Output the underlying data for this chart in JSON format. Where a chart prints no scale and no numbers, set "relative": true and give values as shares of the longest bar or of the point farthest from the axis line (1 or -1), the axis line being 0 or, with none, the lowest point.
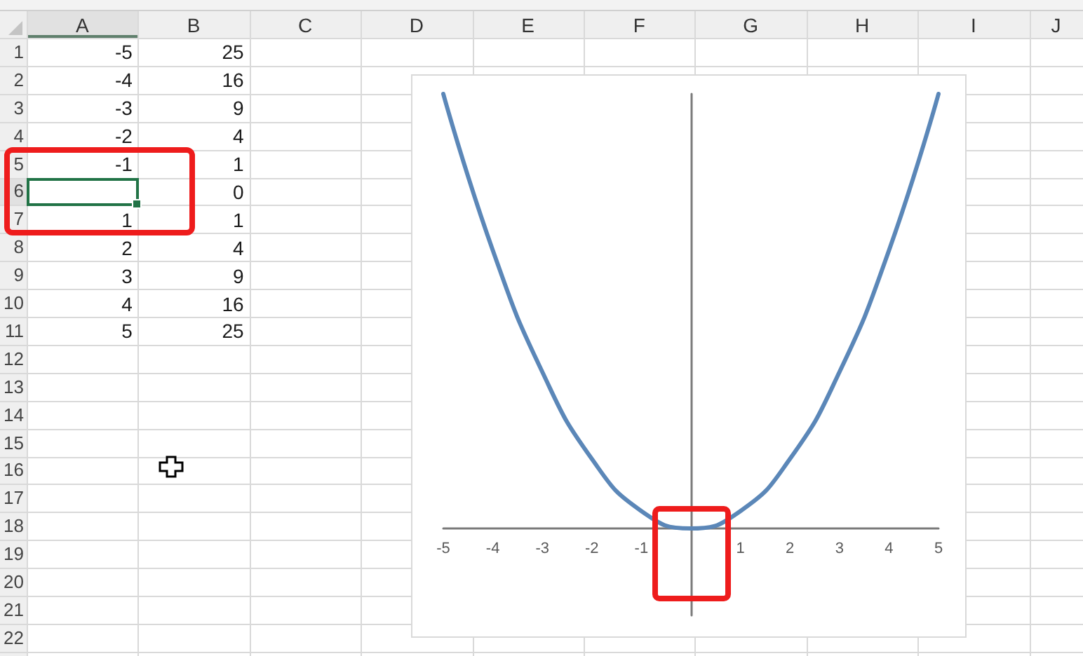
{
  "chart_data": [
    {
      "type": "heatmap",
      "categories": [
        "A",
        "B",
        "C",
        "D",
        "E",
        "F",
        "G",
        "H",
        "I",
        "J"
      ],
      "y_categories": [
        "1",
        "2",
        "3",
        "4",
        "5",
        "6",
        "7",
        "8",
        "9",
        "10",
        "11",
        "12",
        "13",
        "14",
        "15",
        "16",
        "17",
        "18",
        "19",
        "20",
        "21",
        "22"
      ],
      "data_labels": true,
      "cells": [
        [
          -5,
          25,
          null,
          null,
          null,
          null,
          null,
          null,
          null,
          null
        ],
        [
          -4,
          16,
          null,
          null,
          null,
          null,
          null,
          null,
          null,
          null
        ],
        [
          -3,
          9,
          null,
          null,
          null,
          null,
          null,
          null,
          null,
          null
        ],
        [
          -2,
          4,
          null,
          null,
          null,
          null,
          null,
          null,
          null,
          null
        ],
        [
          -1,
          1,
          null,
          null,
          null,
          null,
          null,
          null,
          null,
          null
        ],
        [
          null,
          0,
          null,
          null,
          null,
          null,
          null,
          null,
          null,
          null
        ],
        [
          1,
          1,
          null,
          null,
          null,
          null,
          null,
          null,
          null,
          null
        ],
        [
          2,
          4,
          null,
          null,
          null,
          null,
          null,
          null,
          null,
          null
        ],
        [
          3,
          9,
          null,
          null,
          null,
          null,
          null,
          null,
          null,
          null
        ],
        [
          4,
          16,
          null,
          null,
          null,
          null,
          null,
          null,
          null,
          null
        ],
        [
          5,
          25,
          null,
          null,
          null,
          null,
          null,
          null,
          null,
          null
        ],
        [
          null,
          null,
          null,
          null,
          null,
          null,
          null,
          null,
          null,
          null
        ],
        [
          null,
          null,
          null,
          null,
          null,
          null,
          null,
          null,
          null,
          null
        ],
        [
          null,
          null,
          null,
          null,
          null,
          null,
          null,
          null,
          null,
          null
        ],
        [
          null,
          null,
          null,
          null,
          null,
          null,
          null,
          null,
          null,
          null
        ],
        [
          null,
          null,
          null,
          null,
          null,
          null,
          null,
          null,
          null,
          null
        ],
        [
          null,
          null,
          null,
          null,
          null,
          null,
          null,
          null,
          null,
          null
        ],
        [
          null,
          null,
          null,
          null,
          null,
          null,
          null,
          null,
          null,
          null
        ],
        [
          null,
          null,
          null,
          null,
          null,
          null,
          null,
          null,
          null,
          null
        ],
        [
          null,
          null,
          null,
          null,
          null,
          null,
          null,
          null,
          null,
          null
        ],
        [
          null,
          null,
          null,
          null,
          null,
          null,
          null,
          null,
          null,
          null
        ],
        [
          null,
          null,
          null,
          null,
          null,
          null,
          null,
          null,
          null,
          null
        ]
      ]
    },
    {
      "type": "line",
      "x": [
        -5,
        -4,
        -3,
        -2,
        -1,
        0,
        1,
        2,
        3,
        4,
        5
      ],
      "values": [
        1,
        0.64,
        0.36,
        0.16,
        0.04,
        0,
        0.04,
        0.16,
        0.36,
        0.64,
        1
      ],
      "relative": true,
      "color": "#5b87b8",
      "marker": "none",
      "xlim": [
        -5,
        5
      ],
      "xticks": [
        -5,
        -4,
        -3,
        -2,
        -1,
        1,
        2,
        3,
        4,
        5
      ],
      "tick_labels": "x"
    }
  ]
}
